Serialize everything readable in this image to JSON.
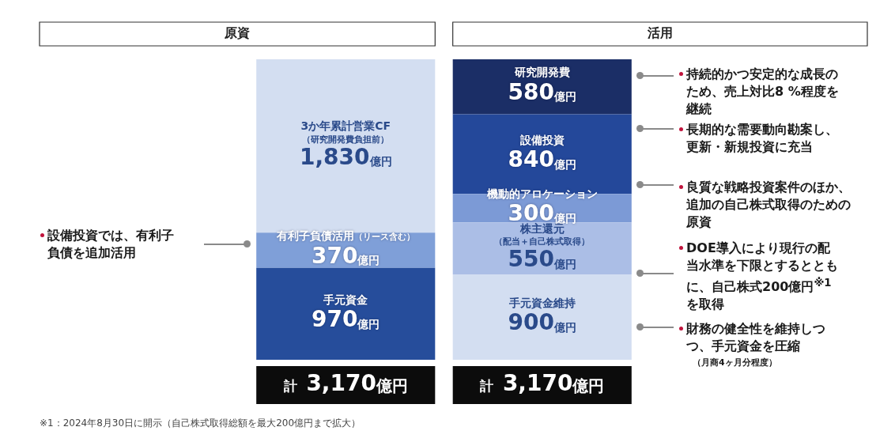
{
  "chart_data": {
    "type": "bar",
    "stacked": true,
    "categories": [
      "原資",
      "活用"
    ],
    "ylim": [
      0,
      3170
    ],
    "tick_labels": "x",
    "series": [
      {
        "name": "手元資金",
        "color": "#264d9b",
        "values": [
          970,
          null
        ],
        "value_labels": [
          "970億円",
          null
        ]
      },
      {
        "name": "有利子負債活用（リース含む）",
        "color": "#7f9fd8",
        "values": [
          370,
          null
        ],
        "value_labels": [
          "370億円",
          null
        ]
      },
      {
        "name": "3か年累計営業CF（研究開発費負担前）",
        "color": "#d3def1",
        "values": [
          1830,
          null
        ],
        "value_labels": [
          "1,830億円",
          null
        ]
      },
      {
        "name": "手元資金維持",
        "color": "#d3def1",
        "values": [
          null,
          900
        ],
        "value_labels": [
          null,
          "900億円"
        ]
      },
      {
        "name": "株主還元（配当＋自己株式取得）",
        "color": "#abbee6",
        "values": [
          null,
          550
        ],
        "value_labels": [
          null,
          "550億円"
        ]
      },
      {
        "name": "機動的アロケーション",
        "color": "#7c9ad6",
        "values": [
          null,
          300
        ],
        "value_labels": [
          null,
          "300億円"
        ]
      },
      {
        "name": "設備投資",
        "color": "#24489a",
        "values": [
          null,
          840
        ],
        "value_labels": [
          null,
          "840億円"
        ]
      },
      {
        "name": "研究開発費",
        "color": "#1b2e66",
        "values": [
          null,
          580
        ],
        "value_labels": [
          null,
          "580億円"
        ]
      }
    ],
    "totals": [
      "計　3,170億円",
      "計　3,170億円"
    ],
    "annotations": [
      "設備投資では、有利子負債を追加活用",
      "持続的かつ安定的な成長のため、売上対比8 %程度を継続",
      "長期的な需要動向勘案し、更新・新規投資に充当",
      "良質な戦略投資案件のほか、追加の自己株式取得のための原資",
      "DOE導入により現行の配当水準を下限とするとともに、自己株式200億円$^{※1}$を取得",
      "財務の健全性を維持しつつ、手元資金を圧縮",
      "（月商4ヶ月分程度）",
      "※1：2024年8月30日に開示（自己株式取得総額を最大200億円まで拡大）"
    ]
  }
}
